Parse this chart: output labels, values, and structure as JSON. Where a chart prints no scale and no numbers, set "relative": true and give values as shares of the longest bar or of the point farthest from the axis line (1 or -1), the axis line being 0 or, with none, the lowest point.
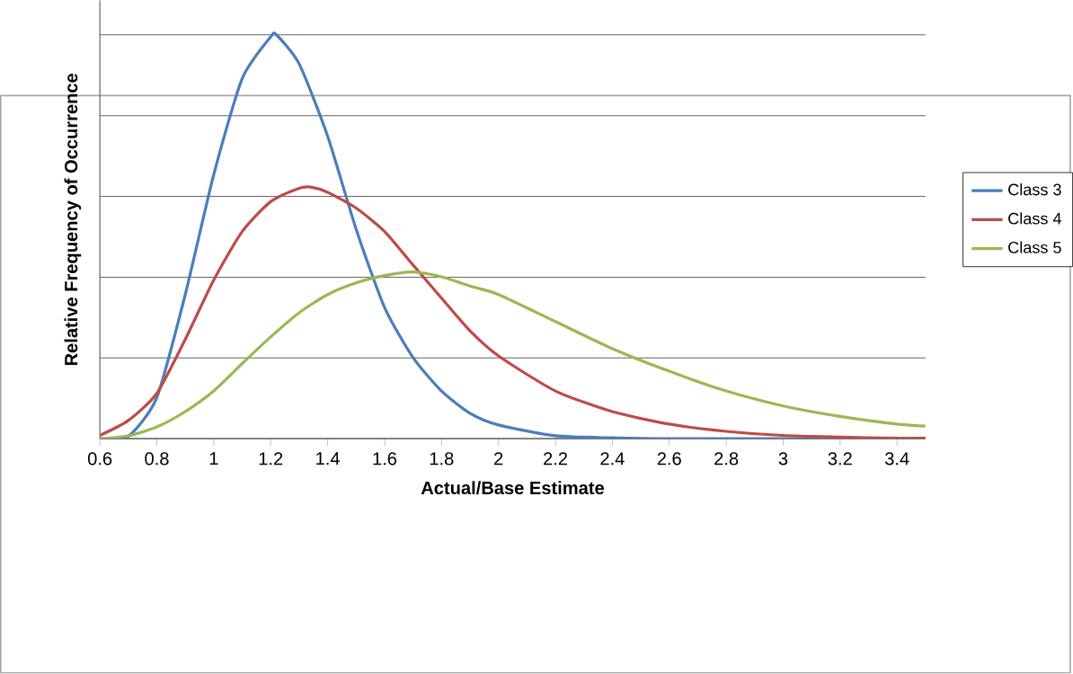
{
  "chart_data": {
    "type": "line",
    "relative": true,
    "xlabel": "Actual/Base Estimate",
    "ylabel": "Relative Frequency of Occurrence",
    "xlim": [
      0.6,
      3.5
    ],
    "xticks": [
      0.6,
      0.8,
      1,
      1.2,
      1.4,
      1.6,
      1.8,
      2,
      2.2,
      2.4,
      2.6,
      2.8,
      3,
      3.2,
      3.4
    ],
    "grid": "y",
    "legend": "right",
    "marker": "none",
    "line_style": "solid",
    "series": [
      {
        "name": "Class 3",
        "color": "#4a7ebb",
        "x": [
          0.6,
          0.7,
          0.8,
          0.9,
          1.0,
          1.1,
          1.2,
          1.22,
          1.3,
          1.4,
          1.5,
          1.6,
          1.7,
          1.8,
          1.9,
          2.0,
          2.2,
          2.4,
          2.6,
          3.5
        ],
        "values": [
          0,
          0.006,
          0.102,
          0.357,
          0.654,
          0.892,
          0.995,
          1,
          0.928,
          0.749,
          0.519,
          0.325,
          0.201,
          0.118,
          0.063,
          0.034,
          0.007,
          0.002,
          0,
          0
        ]
      },
      {
        "name": "Class 4",
        "color": "#be4b48",
        "x": [
          0.6,
          0.7,
          0.8,
          0.9,
          1.0,
          1.1,
          1.2,
          1.3,
          1.34,
          1.4,
          1.5,
          1.6,
          1.7,
          1.8,
          1.9,
          2.0,
          2.2,
          2.4,
          2.6,
          2.8,
          3.0,
          3.2,
          3.4,
          3.5
        ],
        "values": [
          0.008,
          0.045,
          0.112,
          0.246,
          0.393,
          0.513,
          0.587,
          0.62,
          0.623,
          0.61,
          0.571,
          0.513,
          0.43,
          0.348,
          0.267,
          0.205,
          0.118,
          0.067,
          0.036,
          0.018,
          0.008,
          0.004,
          0.001,
          0.001
        ]
      },
      {
        "name": "Class 5",
        "color": "#98b954",
        "x": [
          0.6,
          0.7,
          0.8,
          0.9,
          1.0,
          1.1,
          1.2,
          1.3,
          1.4,
          1.5,
          1.6,
          1.7,
          1.8,
          1.9,
          2.0,
          2.2,
          2.4,
          2.6,
          2.8,
          3.0,
          3.2,
          3.4,
          3.5
        ],
        "values": [
          0,
          0.007,
          0.029,
          0.067,
          0.118,
          0.186,
          0.252,
          0.312,
          0.357,
          0.386,
          0.404,
          0.413,
          0.401,
          0.378,
          0.357,
          0.29,
          0.223,
          0.167,
          0.118,
          0.081,
          0.055,
          0.036,
          0.031
        ]
      }
    ]
  }
}
